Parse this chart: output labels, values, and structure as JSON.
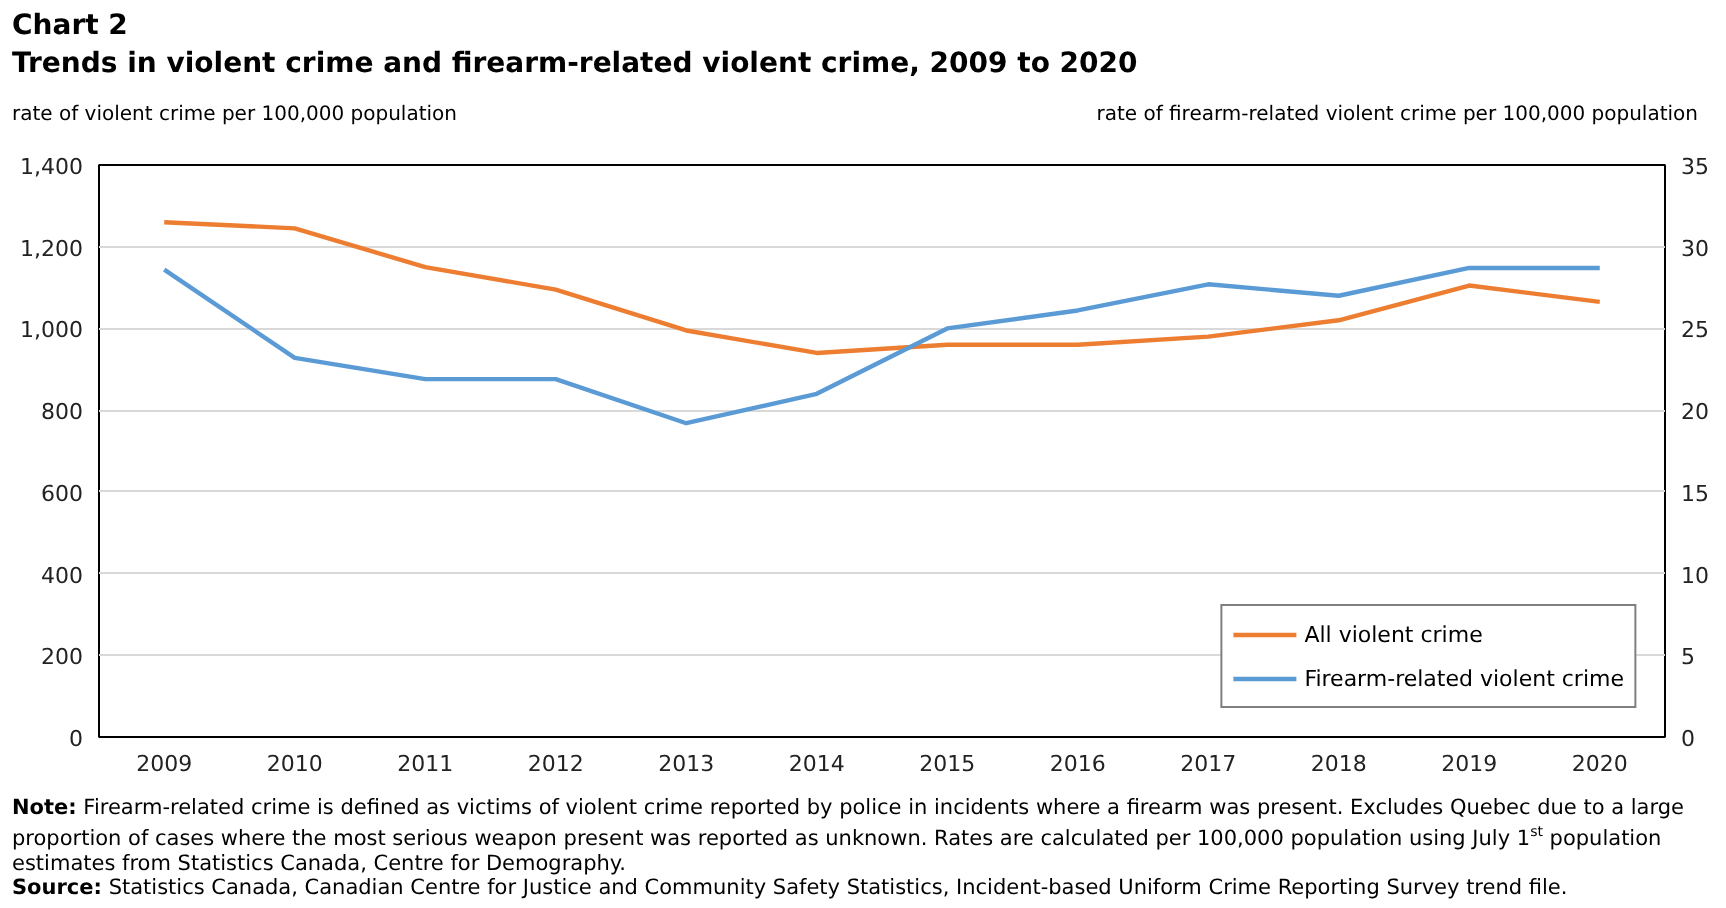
{
  "chart_data": {
    "type": "line",
    "title": "Chart 2",
    "subtitle": "Trends in violent crime and firearm-related violent crime, 2009 to 2020",
    "ylabel": "rate of violent crime per 100,000 population",
    "y2label": "rate of firearm-related violent crime per 100,000 population",
    "categories": [
      "2009",
      "2010",
      "2011",
      "2012",
      "2013",
      "2014",
      "2015",
      "2016",
      "2017",
      "2018",
      "2019",
      "2020"
    ],
    "series": [
      {
        "name": "All violent crime",
        "color": "#ed7d31",
        "values": [
          1260,
          1245,
          1150,
          1095,
          995,
          940,
          960,
          960,
          980,
          1020,
          1105,
          1065
        ]
      },
      {
        "name": "Firearm-related violent crime",
        "color": "#5b9bd5",
        "axis": "y2",
        "values": [
          28.6,
          23.2,
          21.9,
          21.9,
          19.2,
          21.0,
          25.0,
          26.1,
          27.7,
          27.0,
          28.7,
          28.7
        ]
      }
    ],
    "ylim": [
      0,
      1400
    ],
    "yticks": [
      0,
      200,
      400,
      600,
      800,
      {
        "value": 1000,
        "label": "1,000"
      },
      {
        "value": 1200,
        "label": "1,200"
      },
      {
        "value": 1400,
        "label": "1,400"
      }
    ],
    "y2lim": [
      0,
      35
    ],
    "y2ticks": [
      0,
      5,
      10,
      15,
      20,
      25,
      30,
      35
    ],
    "grid": "y",
    "legend": "bottom right",
    "annotations": [
      "Note: Firearm-related crime is defined as victims of violent crime reported by police in incidents where a firearm was present. Excludes Quebec due to a large proportion of cases where the most serious weapon present was reported as unknown. Rates are calculated per 100,000 population using July 1$^{st}$ population estimates from Statistics Canada, Centre for Demography.",
      "Source: Statistics Canada, Canadian Centre for Justice and Community Safety Statistics, Incident-based Uniform Crime Reporting Survey trend file."
    ]
  }
}
